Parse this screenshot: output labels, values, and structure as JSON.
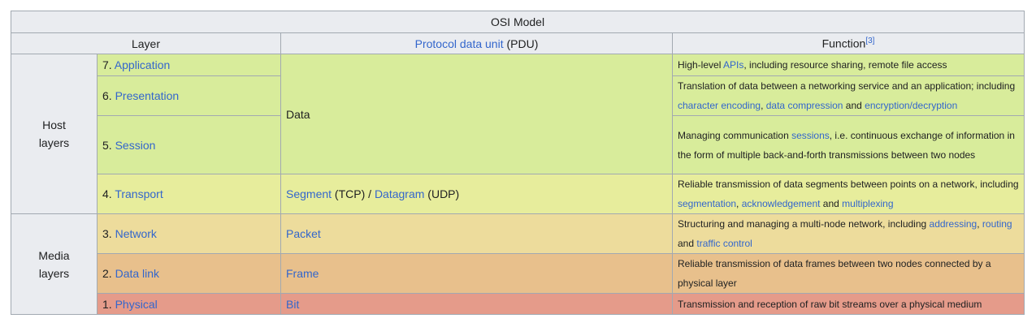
{
  "table": {
    "caption": "OSI Model",
    "headers": {
      "layer": "Layer",
      "pdu_link": "Protocol data unit",
      "pdu_rest": " (PDU)",
      "function": "Function",
      "function_ref": "[3]"
    },
    "groups": {
      "host": [
        "Host",
        "layers"
      ],
      "media": [
        "Media",
        "layers"
      ]
    },
    "rows": [
      {
        "num": "7. ",
        "name": "Application"
      },
      {
        "num": "6. ",
        "name": "Presentation"
      },
      {
        "num": "5. ",
        "name": "Session"
      },
      {
        "num": "4. ",
        "name": "Transport"
      },
      {
        "num": "3. ",
        "name": "Network"
      },
      {
        "num": "2. ",
        "name": "Data link"
      },
      {
        "num": "1. ",
        "name": "Physical"
      }
    ],
    "pdu": {
      "data": "Data",
      "segment": "Segment",
      "tcp": " (TCP) / ",
      "datagram": "Datagram",
      "udp": " (UDP)",
      "packet": "Packet",
      "frame": "Frame",
      "bit": "Bit"
    },
    "functions": {
      "application": {
        "t1": "High-level ",
        "l1": "APIs",
        "t2": ", including resource sharing, remote file access"
      },
      "presentation": {
        "t1": "Translation of data between a networking service and an application; including ",
        "l1": "character encoding",
        "t2": ", ",
        "l2": "data compression",
        "t3": " and ",
        "l3": "encryption/decryption"
      },
      "session": {
        "t1": "Managing communication ",
        "l1": "sessions",
        "t2": ", i.e. continuous exchange of information in the form of multiple back-and-forth transmissions between two nodes"
      },
      "transport": {
        "t1": "Reliable transmission of data segments between points on a network, including ",
        "l1": "segmentation",
        "t2": ", ",
        "l2": "acknowledgement",
        "t3": " and ",
        "l3": "multiplexing"
      },
      "network": {
        "t1": "Structuring and managing a multi-node network, including ",
        "l1": "addressing",
        "t2": ", ",
        "l2": "routing",
        "t3": " and ",
        "l3": "traffic control"
      },
      "datalink": {
        "t1": "Reliable transmission of data frames between two nodes connected by a physical layer"
      },
      "physical": {
        "t1": "Transmission and reception of raw bit streams over a physical medium"
      }
    }
  }
}
